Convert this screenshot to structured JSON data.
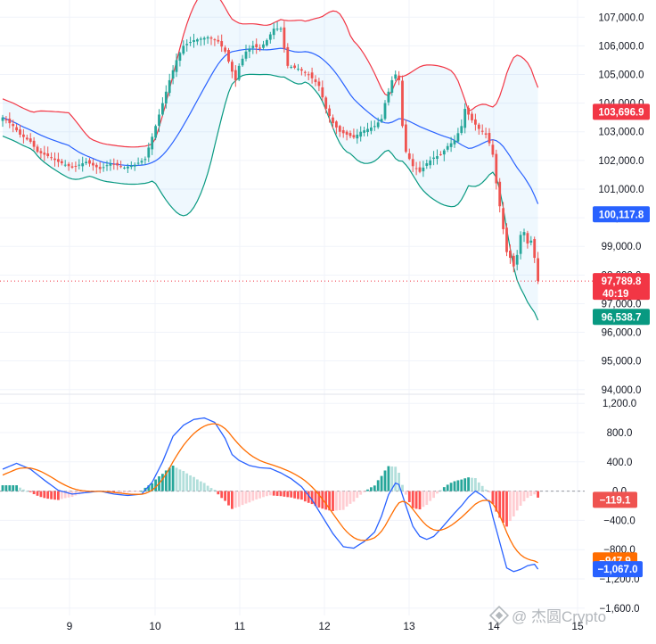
{
  "chart_data": {
    "type": "candlestick",
    "title": "",
    "x_ticks": [
      "9",
      "10",
      "11",
      "12",
      "13",
      "14",
      "15"
    ],
    "price_axis": {
      "range": [
        93900,
        107600
      ],
      "ticks": [
        "107,000.0",
        "106,000.0",
        "105,000.0",
        "104,000.0",
        "103,000.0",
        "102,000.0",
        "101,000.0",
        "100,000.0",
        "99,000.0",
        "98,000.0",
        "97,000.0",
        "96,000.0",
        "95,000.0",
        "94,000.0"
      ],
      "tick_values": [
        107000,
        106000,
        105000,
        104000,
        103000,
        102000,
        101000,
        100000,
        99000,
        98000,
        97000,
        96000,
        95000,
        94000
      ]
    },
    "macd_axis": {
      "range": [
        -1700,
        1300
      ],
      "ticks": [
        "1,200.0",
        "800.0",
        "400.0",
        "0.0",
        "−400.0",
        "−800.0",
        "−1,200.0",
        "−1,600.0"
      ],
      "tick_values": [
        1200,
        800,
        400,
        0,
        -400,
        -800,
        -1200,
        -1600
      ]
    },
    "labels": {
      "bb_upper": "103,696.9",
      "bb_basis": "100,117.8",
      "last_price": "97,789.8",
      "countdown": "40:19",
      "bb_lower": "96,538.7",
      "macd_hist": "−119.1",
      "macd_signal": "−947.9",
      "macd_line": "−1,067.0"
    },
    "label_values": {
      "bb_upper": 103696.9,
      "bb_basis": 100117.8,
      "last_price": 97789.8,
      "bb_lower": 96538.7,
      "macd_hist": -119.1,
      "macd_signal": -947.9,
      "macd_line": -1067.0
    },
    "colors": {
      "up": "#26a69a",
      "down": "#ef5350",
      "bb_upper": "#f23645",
      "bb_basis": "#2962ff",
      "bb_lower": "#089981",
      "bb_fill": "#2196f3",
      "macd": "#2962ff",
      "signal": "#ff6d00",
      "grid": "#f0f3fa",
      "text": "#131722",
      "price_line": "#f23645"
    },
    "price_keypoints": [
      [
        0,
        103500
      ],
      [
        3,
        103200
      ],
      [
        5,
        102900
      ],
      [
        8,
        102650
      ],
      [
        10,
        102300
      ],
      [
        13,
        102150
      ],
      [
        16,
        101950
      ],
      [
        20,
        101750
      ],
      [
        24,
        101950
      ],
      [
        28,
        101700
      ],
      [
        31,
        101900
      ],
      [
        35,
        101750
      ],
      [
        38,
        101850
      ],
      [
        41,
        102050
      ],
      [
        42,
        102450
      ],
      [
        44,
        103200
      ],
      [
        46,
        104000
      ],
      [
        48,
        104800
      ],
      [
        50,
        105500
      ],
      [
        52,
        106000
      ],
      [
        55,
        106200
      ],
      [
        59,
        106300
      ],
      [
        62,
        106150
      ],
      [
        64,
        105800
      ],
      [
        66,
        105100
      ],
      [
        67,
        104800
      ],
      [
        68,
        105300
      ],
      [
        70,
        105800
      ],
      [
        72,
        106000
      ],
      [
        74,
        105900
      ],
      [
        76,
        106200
      ],
      [
        78,
        106600
      ],
      [
        80,
        106600
      ],
      [
        81,
        105900
      ],
      [
        82,
        105300
      ],
      [
        85,
        105200
      ],
      [
        88,
        105000
      ],
      [
        91,
        104600
      ],
      [
        93,
        103800
      ],
      [
        95,
        103300
      ],
      [
        97,
        103000
      ],
      [
        99,
        102900
      ],
      [
        101,
        102800
      ],
      [
        103,
        103000
      ],
      [
        105,
        103100
      ],
      [
        107,
        103200
      ],
      [
        109,
        103450
      ],
      [
        110,
        104000
      ],
      [
        112,
        104800
      ],
      [
        113,
        105000
      ],
      [
        114,
        104800
      ],
      [
        115,
        103200
      ],
      [
        116,
        102300
      ],
      [
        118,
        101800
      ],
      [
        120,
        101600
      ],
      [
        122,
        101900
      ],
      [
        124,
        102100
      ],
      [
        126,
        102200
      ],
      [
        128,
        102500
      ],
      [
        130,
        102700
      ],
      [
        132,
        103200
      ],
      [
        133,
        103800
      ],
      [
        135,
        103400
      ],
      [
        137,
        103100
      ],
      [
        139,
        102900
      ],
      [
        140,
        102600
      ],
      [
        141,
        102200
      ],
      [
        142,
        101200
      ],
      [
        143,
        100400
      ],
      [
        144,
        99600
      ],
      [
        145,
        98800
      ],
      [
        146,
        98600
      ],
      [
        147,
        98300
      ],
      [
        148,
        98700
      ],
      [
        149,
        99400
      ],
      [
        150,
        99500
      ],
      [
        151,
        99100
      ],
      [
        152,
        99200
      ],
      [
        153,
        98600
      ],
      [
        154,
        97790
      ]
    ],
    "macd_keypoints": [
      [
        0,
        300
      ],
      [
        4,
        380
      ],
      [
        8,
        300
      ],
      [
        12,
        150
      ],
      [
        16,
        10
      ],
      [
        20,
        -40
      ],
      [
        24,
        -20
      ],
      [
        28,
        0
      ],
      [
        32,
        -40
      ],
      [
        36,
        -60
      ],
      [
        40,
        -40
      ],
      [
        43,
        120
      ],
      [
        46,
        400
      ],
      [
        49,
        750
      ],
      [
        52,
        900
      ],
      [
        55,
        980
      ],
      [
        58,
        1000
      ],
      [
        61,
        940
      ],
      [
        64,
        720
      ],
      [
        66,
        500
      ],
      [
        68,
        420
      ],
      [
        71,
        350
      ],
      [
        74,
        320
      ],
      [
        77,
        310
      ],
      [
        80,
        250
      ],
      [
        83,
        170
      ],
      [
        86,
        60
      ],
      [
        89,
        -120
      ],
      [
        92,
        -350
      ],
      [
        95,
        -580
      ],
      [
        98,
        -760
      ],
      [
        101,
        -780
      ],
      [
        104,
        -690
      ],
      [
        107,
        -560
      ],
      [
        109,
        -340
      ],
      [
        111,
        -50
      ],
      [
        113,
        110
      ],
      [
        114,
        90
      ],
      [
        116,
        -200
      ],
      [
        118,
        -480
      ],
      [
        120,
        -620
      ],
      [
        122,
        -660
      ],
      [
        124,
        -620
      ],
      [
        126,
        -520
      ],
      [
        128,
        -410
      ],
      [
        130,
        -300
      ],
      [
        132,
        -200
      ],
      [
        134,
        -80
      ],
      [
        136,
        0
      ],
      [
        138,
        -60
      ],
      [
        140,
        -150
      ],
      [
        141,
        -350
      ],
      [
        143,
        -700
      ],
      [
        145,
        -1050
      ],
      [
        147,
        -1100
      ],
      [
        149,
        -1070
      ],
      [
        151,
        -1020
      ],
      [
        153,
        -1000
      ],
      [
        154,
        -1067
      ]
    ]
  },
  "watermark": {
    "icon": "binance-square-icon",
    "text": "@ 杰圆Crypto"
  }
}
